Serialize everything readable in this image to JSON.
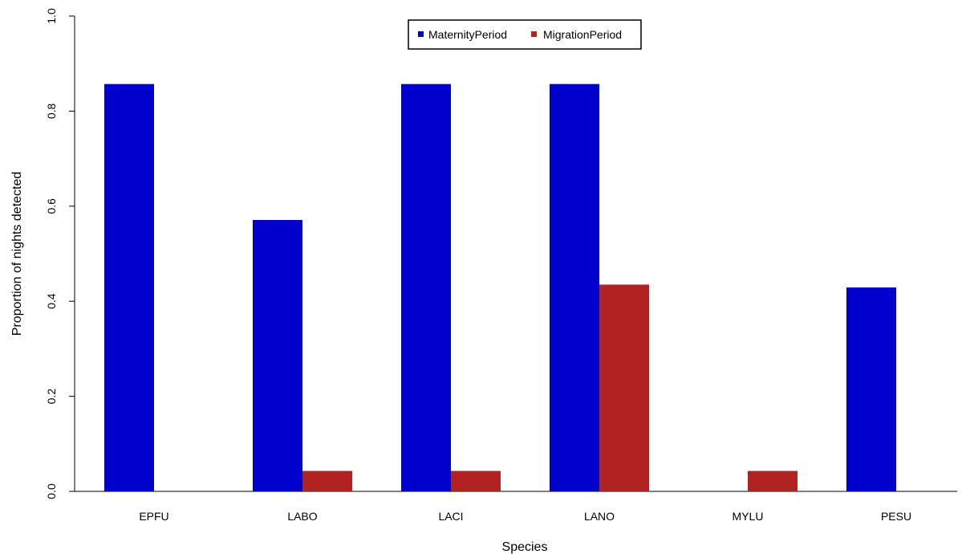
{
  "chart_data": {
    "type": "bar",
    "categories": [
      "EPFU",
      "LABO",
      "LACI",
      "LANO",
      "MYLU",
      "PESU"
    ],
    "series": [
      {
        "name": "MaternityPeriod",
        "values": [
          0.857,
          0.571,
          0.857,
          0.857,
          0.0,
          0.429
        ],
        "color": "#0000cd"
      },
      {
        "name": "MigrationPeriod",
        "values": [
          0.0,
          0.043,
          0.043,
          0.435,
          0.043,
          0.0
        ],
        "color": "#b22222"
      }
    ],
    "title": "",
    "xlabel": "Species",
    "ylabel": "Proportion of nights detected",
    "ylim": [
      0,
      1.0
    ],
    "yticks": [
      "0.0",
      "0.2",
      "0.4",
      "0.6",
      "0.8",
      "1.0"
    ],
    "grid": false,
    "legend_position": "top-center"
  }
}
